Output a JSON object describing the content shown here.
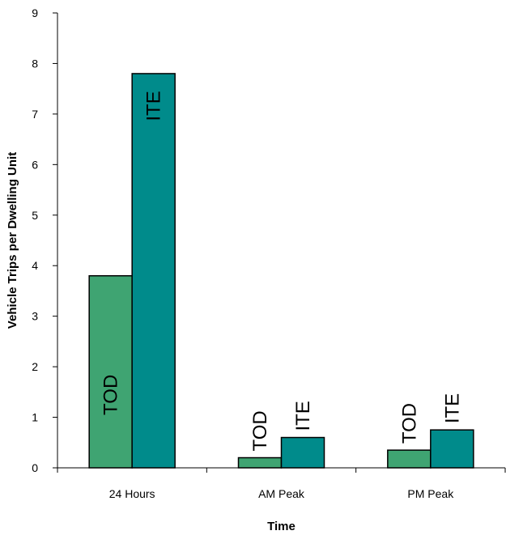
{
  "chart_data": {
    "type": "bar",
    "categories": [
      "24 Hours",
      "AM Peak",
      "PM Peak"
    ],
    "series": [
      {
        "name": "TOD",
        "values": [
          3.8,
          0.2,
          0.35
        ],
        "color": "#3fa472"
      },
      {
        "name": "ITE",
        "values": [
          7.8,
          0.6,
          0.75
        ],
        "color": "#008b8b"
      }
    ],
    "xlabel": "Time",
    "ylabel": "Vehicle Trips per Dwelling Unit",
    "ylim": [
      0,
      9
    ],
    "yticks": [
      "0",
      "1",
      "2",
      "3",
      "4",
      "5",
      "6",
      "7",
      "8",
      "9"
    ],
    "grid": false,
    "legend": "none",
    "bar_labels": "series name, rotated vertically"
  }
}
